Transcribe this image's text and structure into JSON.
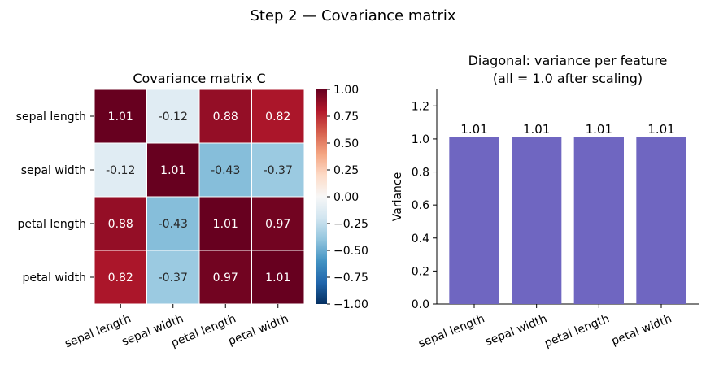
{
  "figure": {
    "suptitle": "Step 2 — Covariance matrix"
  },
  "chart_data": [
    {
      "type": "heatmap",
      "title": "Covariance matrix C",
      "rows": [
        "sepal length",
        "sepal width",
        "petal length",
        "petal width"
      ],
      "columns": [
        "sepal length",
        "sepal width",
        "petal length",
        "petal width"
      ],
      "values": [
        [
          1.01,
          -0.12,
          0.88,
          0.82
        ],
        [
          -0.12,
          1.01,
          -0.43,
          -0.37
        ],
        [
          0.88,
          -0.43,
          1.01,
          0.97
        ],
        [
          0.82,
          -0.37,
          0.97,
          1.01
        ]
      ],
      "value_labels": [
        [
          "1.01",
          "-0.12",
          "0.88",
          "0.82"
        ],
        [
          "-0.12",
          "1.01",
          "-0.43",
          "-0.37"
        ],
        [
          "0.88",
          "-0.43",
          "1.01",
          "0.97"
        ],
        [
          "0.82",
          "-0.37",
          "0.97",
          "1.01"
        ]
      ],
      "colormap": "RdBu_r",
      "vmin": -1.0,
      "vmax": 1.0,
      "colorbar_ticks": [
        "−1.00",
        "−0.75",
        "−0.50",
        "−0.25",
        "0.00",
        "0.25",
        "0.50",
        "0.75",
        "1.00"
      ],
      "colorbar_tick_values": [
        -1.0,
        -0.75,
        -0.5,
        -0.25,
        0.0,
        0.25,
        0.5,
        0.75,
        1.0
      ]
    },
    {
      "type": "bar",
      "title_lines": [
        "Diagonal: variance per feature",
        "(all = 1.0 after scaling)"
      ],
      "categories": [
        "sepal length",
        "sepal width",
        "petal length",
        "petal width"
      ],
      "values": [
        1.01,
        1.01,
        1.01,
        1.01
      ],
      "value_labels": [
        "1.01",
        "1.01",
        "1.01",
        "1.01"
      ],
      "xlabel": "",
      "ylabel": "Variance",
      "ylim": [
        0,
        1.3
      ],
      "yticks": [
        "0.0",
        "0.2",
        "0.4",
        "0.6",
        "0.8",
        "1.0",
        "1.2"
      ],
      "ytick_values": [
        0.0,
        0.2,
        0.4,
        0.6,
        0.8,
        1.0,
        1.2
      ],
      "bar_color": "#6f66c1",
      "grid": false
    }
  ]
}
